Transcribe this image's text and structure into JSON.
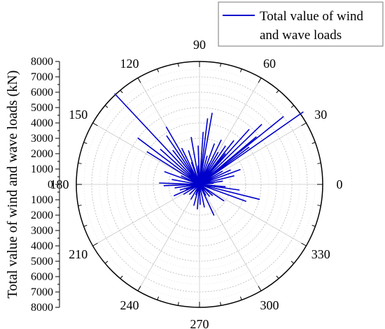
{
  "chart_data": {
    "type": "polar-line",
    "ylabel": "Total value of wind and wave loads (kN)",
    "r_ticks": [
      "8000",
      "7000",
      "6000",
      "5000",
      "4000",
      "3000",
      "2000",
      "1000",
      "0",
      "1000",
      "2000",
      "3000",
      "4000",
      "5000",
      "6000",
      "7000",
      "8000"
    ],
    "rlim": [
      0,
      8000
    ],
    "angle_labels": [
      "0",
      "30",
      "60",
      "90",
      "120",
      "150",
      "180",
      "210",
      "240",
      "270",
      "300",
      "330"
    ],
    "angle_direction": "counter-clockwise, 0 at right",
    "grid": true,
    "legend_position": "top-right",
    "series": [
      {
        "name": "Total value of wind and wave loads",
        "color": "#0000cc",
        "points": [
          [
            0,
            0
          ],
          [
            133,
            8050
          ],
          [
            0,
            0
          ],
          [
            35,
            8200
          ],
          [
            0,
            0
          ],
          [
            39,
            7000
          ],
          [
            0,
            0
          ],
          [
            44,
            5600
          ],
          [
            0,
            0
          ],
          [
            40,
            4800
          ],
          [
            0,
            0
          ],
          [
            48,
            4800
          ],
          [
            0,
            0
          ],
          [
            37,
            4000
          ],
          [
            0,
            0
          ],
          [
            52,
            3600
          ],
          [
            0,
            0
          ],
          [
            56,
            3000
          ],
          [
            0,
            0
          ],
          [
            50,
            2600
          ],
          [
            0,
            0
          ],
          [
            60,
            2400
          ],
          [
            0,
            0
          ],
          [
            64,
            3200
          ],
          [
            0,
            0
          ],
          [
            70,
            2800
          ],
          [
            0,
            0
          ],
          [
            80,
            4700
          ],
          [
            0,
            0
          ],
          [
            83,
            4300
          ],
          [
            0,
            0
          ],
          [
            86,
            3400
          ],
          [
            0,
            0
          ],
          [
            92,
            2500
          ],
          [
            0,
            0
          ],
          [
            100,
            3100
          ],
          [
            0,
            0
          ],
          [
            108,
            2300
          ],
          [
            0,
            0
          ],
          [
            116,
            2600
          ],
          [
            0,
            0
          ],
          [
            120,
            4300
          ],
          [
            0,
            0
          ],
          [
            124,
            3800
          ],
          [
            0,
            0
          ],
          [
            128,
            2800
          ],
          [
            0,
            0
          ],
          [
            138,
            3400
          ],
          [
            0,
            0
          ],
          [
            143,
            5000
          ],
          [
            0,
            0
          ],
          [
            148,
            4000
          ],
          [
            0,
            0
          ],
          [
            160,
            2400
          ],
          [
            0,
            0
          ],
          [
            170,
            1800
          ],
          [
            0,
            0
          ],
          [
            178,
            2600
          ],
          [
            0,
            0
          ],
          [
            182,
            2300
          ],
          [
            0,
            0
          ],
          [
            188,
            1600
          ],
          [
            0,
            0
          ],
          [
            196,
            1300
          ],
          [
            0,
            0
          ],
          [
            204,
            1800
          ],
          [
            0,
            0
          ],
          [
            212,
            1200
          ],
          [
            0,
            0
          ],
          [
            225,
            900
          ],
          [
            0,
            0
          ],
          [
            240,
            1100
          ],
          [
            0,
            0
          ],
          [
            255,
            1400
          ],
          [
            0,
            0
          ],
          [
            265,
            1600
          ],
          [
            0,
            0
          ],
          [
            272,
            1300
          ],
          [
            0,
            0
          ],
          [
            282,
            1500
          ],
          [
            0,
            0
          ],
          [
            295,
            2200
          ],
          [
            0,
            0
          ],
          [
            310,
            1000
          ],
          [
            0,
            0
          ],
          [
            326,
            1900
          ],
          [
            0,
            0
          ],
          [
            340,
            3200
          ],
          [
            0,
            0
          ],
          [
            346,
            4000
          ],
          [
            0,
            0
          ],
          [
            352,
            2600
          ],
          [
            0,
            0
          ],
          [
            8,
            1500
          ],
          [
            0,
            0
          ],
          [
            14,
            2300
          ],
          [
            0,
            0
          ],
          [
            20,
            2800
          ],
          [
            0,
            0
          ],
          [
            25,
            2200
          ],
          [
            0,
            0
          ],
          [
            30,
            1700
          ],
          [
            0,
            0
          ],
          [
            65,
            1500
          ],
          [
            0,
            0
          ],
          [
            75,
            1900
          ],
          [
            0,
            0
          ],
          [
            95,
            1200
          ],
          [
            0,
            0
          ],
          [
            110,
            1500
          ],
          [
            0,
            0
          ],
          [
            155,
            1300
          ],
          [
            0,
            0
          ],
          [
            200,
            900
          ],
          [
            0,
            0
          ],
          [
            250,
            700
          ],
          [
            0,
            0
          ],
          [
            300,
            800
          ],
          [
            0,
            0
          ],
          [
            320,
            1100
          ],
          [
            0,
            0
          ],
          [
            5,
            900
          ],
          [
            0,
            0
          ],
          [
            355,
            1700
          ]
        ]
      }
    ]
  }
}
